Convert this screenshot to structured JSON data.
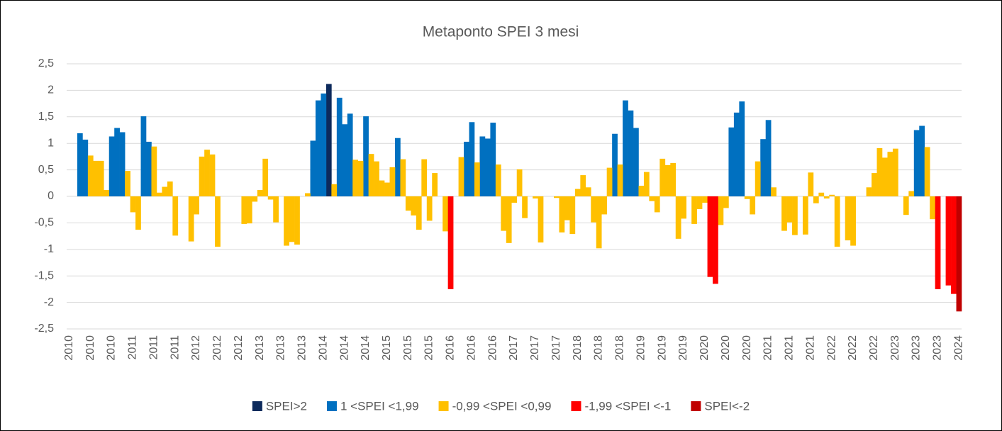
{
  "chart_data": {
    "type": "bar",
    "title": "Metaponto SPEI 3 mesi",
    "categories": [
      "2010",
      null,
      null,
      null,
      "2010",
      null,
      null,
      null,
      "2010",
      null,
      null,
      null,
      "2011",
      null,
      null,
      null,
      "2011",
      null,
      null,
      null,
      "2011",
      null,
      null,
      null,
      "2012",
      null,
      null,
      null,
      "2012",
      null,
      null,
      null,
      "2012",
      null,
      null,
      null,
      "2013",
      null,
      null,
      null,
      "2013",
      null,
      null,
      null,
      "2013",
      null,
      null,
      null,
      "2014",
      null,
      null,
      null,
      "2014",
      null,
      null,
      null,
      "2014",
      null,
      null,
      null,
      "2015",
      null,
      null,
      null,
      "2015",
      null,
      null,
      null,
      "2015",
      null,
      null,
      null,
      "2016",
      null,
      null,
      null,
      "2016",
      null,
      null,
      null,
      "2016",
      null,
      null,
      null,
      "2017",
      null,
      null,
      null,
      "2017",
      null,
      null,
      null,
      "2017",
      null,
      null,
      null,
      "2018",
      null,
      null,
      null,
      "2018",
      null,
      null,
      null,
      "2018",
      null,
      null,
      null,
      "2019",
      null,
      null,
      null,
      "2019",
      null,
      null,
      null,
      "2019",
      null,
      null,
      null,
      "2020",
      null,
      null,
      null,
      "2020",
      null,
      null,
      null,
      "2020",
      null,
      null,
      null,
      "2021",
      null,
      null,
      null,
      "2021",
      null,
      null,
      null,
      "2021",
      null,
      null,
      null,
      "2022",
      null,
      null,
      null,
      "2022",
      null,
      null,
      null,
      "2022",
      null,
      null,
      null,
      "2023",
      null,
      null,
      null,
      "2023",
      null,
      null,
      null,
      "2023",
      null,
      null,
      null,
      "2024"
    ],
    "series": [
      {
        "name": "SPEI>2",
        "color": "#0d2a5c",
        "values": [
          null,
          null,
          null,
          null,
          null,
          null,
          null,
          null,
          null,
          null,
          null,
          null,
          null,
          null,
          null,
          null,
          null,
          null,
          null,
          null,
          null,
          null,
          null,
          null,
          null,
          null,
          null,
          null,
          null,
          null,
          null,
          null,
          null,
          null,
          null,
          null,
          null,
          null,
          null,
          null,
          null,
          null,
          null,
          null,
          null,
          null,
          null,
          null,
          null,
          2.12,
          null,
          null,
          null,
          null,
          null,
          null,
          null,
          null,
          null,
          null,
          null,
          null,
          null,
          null,
          null,
          null,
          null,
          null,
          null,
          null,
          null,
          null,
          null,
          null,
          null,
          null,
          null,
          null,
          null,
          null,
          null,
          null,
          null,
          null,
          null,
          null,
          null,
          null,
          null,
          null,
          null,
          null,
          null,
          null,
          null,
          null,
          null,
          null,
          null,
          null,
          null,
          null,
          null,
          null,
          null,
          null,
          null,
          null,
          null,
          null,
          null,
          null,
          null,
          null,
          null,
          null,
          null,
          null,
          null,
          null,
          null,
          null,
          null,
          null,
          null,
          null,
          null,
          null,
          null,
          null,
          null,
          null,
          null,
          null,
          null,
          null,
          null,
          null,
          null,
          null,
          null,
          null,
          null,
          null,
          null,
          null,
          null,
          null,
          null,
          null,
          null,
          null,
          null,
          null,
          null,
          null,
          null,
          null,
          null,
          null,
          null,
          null,
          null,
          null,
          null,
          null,
          null,
          null,
          null
        ]
      },
      {
        "name": "1 <SPEI <1,99",
        "color": "#0070c0",
        "values": [
          null,
          null,
          1.19,
          1.07,
          null,
          null,
          null,
          null,
          1.13,
          1.29,
          1.21,
          null,
          null,
          null,
          1.51,
          1.03,
          null,
          null,
          null,
          null,
          null,
          null,
          null,
          null,
          null,
          null,
          null,
          null,
          null,
          null,
          null,
          null,
          null,
          null,
          null,
          null,
          null,
          null,
          null,
          null,
          null,
          null,
          null,
          null,
          null,
          null,
          1.05,
          1.81,
          1.94,
          null,
          null,
          1.86,
          1.36,
          1.56,
          null,
          null,
          1.51,
          null,
          null,
          null,
          null,
          null,
          1.1,
          null,
          null,
          null,
          null,
          null,
          null,
          null,
          null,
          null,
          null,
          null,
          null,
          1.03,
          1.4,
          null,
          1.13,
          1.09,
          1.39,
          null,
          null,
          null,
          null,
          null,
          null,
          null,
          null,
          null,
          null,
          null,
          null,
          null,
          null,
          null,
          null,
          null,
          null,
          null,
          null,
          null,
          null,
          1.18,
          null,
          1.81,
          1.62,
          1.29,
          null,
          null,
          null,
          null,
          null,
          null,
          null,
          null,
          null,
          null,
          null,
          null,
          null,
          null,
          null,
          null,
          null,
          1.3,
          1.58,
          1.79,
          null,
          null,
          null,
          1.08,
          1.44,
          null,
          null,
          null,
          null,
          null,
          null,
          null,
          null,
          null,
          null,
          null,
          null,
          null,
          null,
          null,
          null,
          null,
          null,
          null,
          null,
          null,
          null,
          null,
          null,
          null,
          null,
          null,
          1.25,
          1.33,
          null,
          null,
          null,
          null,
          null,
          null,
          null
        ]
      },
      {
        "name": "-0,99 <SPEI <0,99",
        "color": "#ffc000",
        "values": [
          null,
          null,
          null,
          null,
          0.77,
          0.67,
          0.67,
          0.12,
          null,
          null,
          null,
          0.48,
          -0.3,
          -0.63,
          null,
          null,
          0.94,
          0.07,
          0.18,
          0.28,
          -0.74,
          null,
          null,
          -0.85,
          -0.34,
          0.75,
          0.88,
          0.79,
          -0.95,
          null,
          null,
          null,
          null,
          -0.52,
          -0.51,
          -0.1,
          0.12,
          0.71,
          -0.06,
          -0.49,
          null,
          -0.93,
          -0.86,
          -0.91,
          null,
          0.06,
          null,
          null,
          null,
          null,
          0.23,
          null,
          null,
          null,
          0.69,
          0.67,
          null,
          0.8,
          0.66,
          0.3,
          0.26,
          0.55,
          null,
          0.7,
          -0.27,
          -0.36,
          -0.63,
          0.7,
          -0.46,
          0.44,
          null,
          -0.66,
          null,
          null,
          0.74,
          null,
          null,
          0.64,
          null,
          null,
          null,
          0.6,
          -0.65,
          -0.88,
          -0.12,
          0.51,
          -0.41,
          null,
          -0.04,
          -0.87,
          null,
          null,
          -0.03,
          -0.68,
          -0.45,
          -0.71,
          0.14,
          0.4,
          0.17,
          -0.49,
          -0.98,
          -0.34,
          0.54,
          null,
          0.6,
          null,
          null,
          null,
          0.2,
          0.46,
          -0.09,
          -0.3,
          0.71,
          0.59,
          0.63,
          -0.8,
          -0.42,
          null,
          -0.52,
          -0.24,
          -0.12,
          null,
          null,
          -0.54,
          -0.22,
          null,
          null,
          null,
          -0.05,
          -0.34,
          0.66,
          null,
          null,
          0.17,
          null,
          -0.65,
          -0.49,
          -0.73,
          null,
          -0.72,
          0.45,
          -0.13,
          0.07,
          -0.04,
          0.03,
          -0.95,
          null,
          -0.83,
          -0.93,
          null,
          null,
          0.17,
          0.44,
          0.91,
          0.73,
          0.84,
          0.9,
          null,
          -0.35,
          0.1,
          null,
          null,
          0.93,
          -0.43,
          null,
          null,
          null,
          null,
          null
        ]
      },
      {
        "name": "-1,99 <SPEI <-1",
        "color": "#ff0000",
        "values": [
          null,
          null,
          null,
          null,
          null,
          null,
          null,
          null,
          null,
          null,
          null,
          null,
          null,
          null,
          null,
          null,
          null,
          null,
          null,
          null,
          null,
          null,
          null,
          null,
          null,
          null,
          null,
          null,
          null,
          null,
          null,
          null,
          null,
          null,
          null,
          null,
          null,
          null,
          null,
          null,
          null,
          null,
          null,
          null,
          null,
          null,
          null,
          null,
          null,
          null,
          null,
          null,
          null,
          null,
          null,
          null,
          null,
          null,
          null,
          null,
          null,
          null,
          null,
          null,
          null,
          null,
          null,
          null,
          null,
          null,
          null,
          null,
          -1.75,
          null,
          null,
          null,
          null,
          null,
          null,
          null,
          null,
          null,
          null,
          null,
          null,
          null,
          null,
          null,
          null,
          null,
          null,
          null,
          null,
          null,
          null,
          null,
          null,
          null,
          null,
          null,
          null,
          null,
          null,
          null,
          null,
          null,
          null,
          null,
          null,
          null,
          null,
          null,
          null,
          null,
          null,
          null,
          null,
          null,
          null,
          null,
          null,
          -1.52,
          -1.65,
          null,
          null,
          null,
          null,
          null,
          null,
          null,
          null,
          null,
          null,
          null,
          null,
          null,
          null,
          null,
          null,
          null,
          null,
          null,
          null,
          null,
          null,
          null,
          null,
          null,
          null,
          null,
          null,
          null,
          null,
          null,
          null,
          null,
          null,
          null,
          null,
          null,
          null,
          null,
          null,
          null,
          -1.75,
          null,
          -1.68,
          -1.84,
          null
        ]
      },
      {
        "name": "SPEI<-2",
        "color": "#c00000",
        "values": [
          null,
          null,
          null,
          null,
          null,
          null,
          null,
          null,
          null,
          null,
          null,
          null,
          null,
          null,
          null,
          null,
          null,
          null,
          null,
          null,
          null,
          null,
          null,
          null,
          null,
          null,
          null,
          null,
          null,
          null,
          null,
          null,
          null,
          null,
          null,
          null,
          null,
          null,
          null,
          null,
          null,
          null,
          null,
          null,
          null,
          null,
          null,
          null,
          null,
          null,
          null,
          null,
          null,
          null,
          null,
          null,
          null,
          null,
          null,
          null,
          null,
          null,
          null,
          null,
          null,
          null,
          null,
          null,
          null,
          null,
          null,
          null,
          null,
          null,
          null,
          null,
          null,
          null,
          null,
          null,
          null,
          null,
          null,
          null,
          null,
          null,
          null,
          null,
          null,
          null,
          null,
          null,
          null,
          null,
          null,
          null,
          null,
          null,
          null,
          null,
          null,
          null,
          null,
          null,
          null,
          null,
          null,
          null,
          null,
          null,
          null,
          null,
          null,
          null,
          null,
          null,
          null,
          null,
          null,
          null,
          null,
          null,
          null,
          null,
          null,
          null,
          null,
          null,
          null,
          null,
          null,
          null,
          null,
          null,
          null,
          null,
          null,
          null,
          null,
          null,
          null,
          null,
          null,
          null,
          null,
          null,
          null,
          null,
          null,
          null,
          null,
          null,
          null,
          null,
          null,
          null,
          null,
          null,
          null,
          null,
          null,
          null,
          null,
          null,
          null,
          null,
          null,
          null,
          -2.17
        ]
      }
    ],
    "ylim": [
      -2.5,
      2.5
    ],
    "yticks": [
      {
        "value": -2.5,
        "label": "-2,5"
      },
      -2,
      {
        "value": -1.5,
        "label": "-1,5"
      },
      -1,
      {
        "value": -0.5,
        "label": "-0,5"
      },
      0,
      {
        "value": 0.5,
        "label": "0,5"
      },
      1,
      {
        "value": 1.5,
        "label": "1,5"
      },
      2,
      {
        "value": 2.5,
        "label": "2,5"
      }
    ],
    "grid": true,
    "legend": "bottom"
  }
}
